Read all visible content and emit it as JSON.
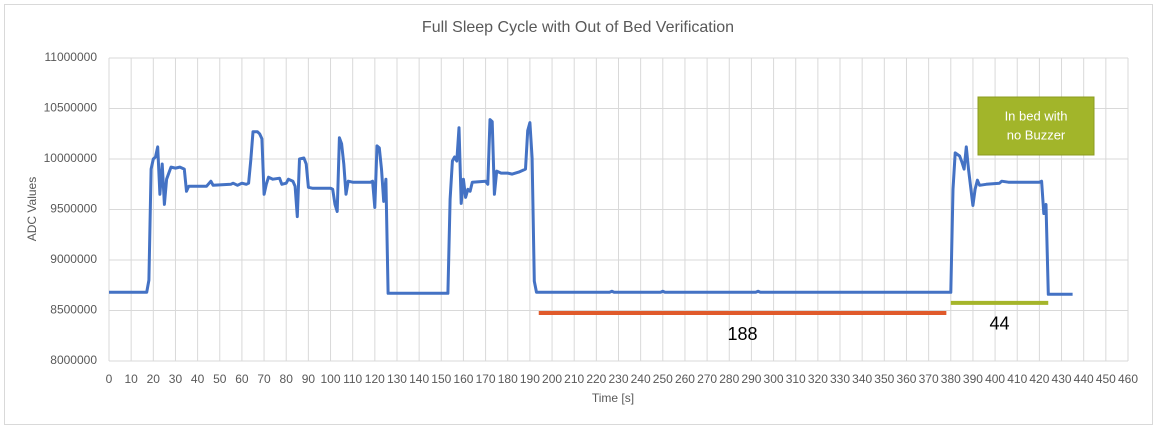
{
  "chart_data": {
    "type": "line",
    "title": "Full Sleep Cycle with Out of Bed Verification",
    "x_label": "Time [s]",
    "y_label": "ADC Values",
    "color": "#4472c4",
    "grid": true,
    "x": [
      0,
      17,
      18,
      19,
      20,
      21,
      22,
      23,
      24,
      25,
      26,
      28,
      30,
      32,
      34,
      35,
      36,
      44,
      46,
      47,
      55,
      56,
      58,
      60,
      62,
      63,
      64,
      65,
      67,
      68,
      69,
      70,
      71,
      72,
      74,
      77,
      78,
      80,
      81,
      83,
      84,
      85,
      86,
      88,
      89,
      90,
      92,
      96,
      100,
      101,
      102,
      103,
      104,
      105,
      106,
      107,
      108,
      110,
      118,
      119,
      120,
      121,
      122,
      123,
      124,
      125,
      126,
      153,
      154,
      155,
      156,
      157,
      158,
      159,
      160,
      161,
      162,
      163,
      164,
      170,
      171,
      172,
      173,
      174,
      175,
      177,
      180,
      182,
      185,
      188,
      189,
      190,
      191,
      192,
      193,
      226,
      227,
      228,
      249,
      250,
      251,
      292,
      293,
      294,
      380,
      381,
      382,
      384,
      385,
      386,
      387,
      388,
      389,
      390,
      391,
      392,
      393,
      396,
      402,
      403,
      406,
      420,
      421,
      422,
      423,
      424,
      435
    ],
    "values": [
      8680000,
      8680000,
      8800000,
      9900000,
      10000000,
      10020000,
      10120000,
      9650000,
      9950000,
      9550000,
      9800000,
      9920000,
      9910000,
      9920000,
      9900000,
      9680000,
      9730000,
      9730000,
      9780000,
      9740000,
      9750000,
      9760000,
      9740000,
      9760000,
      9750000,
      9760000,
      9990000,
      10270000,
      10270000,
      10250000,
      10200000,
      9650000,
      9750000,
      9820000,
      9800000,
      9810000,
      9750000,
      9760000,
      9800000,
      9780000,
      9730000,
      9430000,
      10000000,
      10010000,
      9950000,
      9720000,
      9710000,
      9710000,
      9710000,
      9700000,
      9550000,
      9480000,
      10210000,
      10150000,
      9950000,
      9650000,
      9780000,
      9770000,
      9770000,
      9780000,
      9520000,
      10130000,
      10110000,
      9900000,
      9580000,
      9800000,
      8670000,
      8670000,
      9600000,
      9980000,
      10020000,
      9980000,
      10310000,
      9560000,
      9800000,
      9620000,
      9700000,
      9680000,
      9770000,
      9780000,
      9750000,
      10390000,
      10370000,
      9650000,
      9880000,
      9860000,
      9860000,
      9850000,
      9870000,
      9900000,
      10280000,
      10360000,
      10010000,
      8790000,
      8680000,
      8680000,
      8690000,
      8680000,
      8680000,
      8690000,
      8680000,
      8680000,
      8690000,
      8680000,
      8680000,
      9700000,
      10060000,
      10030000,
      9970000,
      9900000,
      10120000,
      9900000,
      9720000,
      9540000,
      9700000,
      9790000,
      9740000,
      9750000,
      9760000,
      9780000,
      9770000,
      9770000,
      9780000,
      9460000,
      9550000,
      8660000,
      8660000
    ],
    "xlim": [
      0,
      460
    ],
    "xticks": [
      0,
      10,
      20,
      30,
      40,
      50,
      60,
      70,
      80,
      90,
      100,
      110,
      120,
      130,
      140,
      150,
      160,
      170,
      180,
      190,
      200,
      210,
      220,
      230,
      240,
      250,
      260,
      270,
      280,
      290,
      300,
      310,
      320,
      330,
      340,
      350,
      360,
      370,
      380,
      390,
      400,
      410,
      420,
      430,
      440,
      450,
      460
    ],
    "ylim": [
      8000000,
      11000000
    ],
    "yticks": [
      8000000,
      8500000,
      9000000,
      9500000,
      10000000,
      10500000,
      11000000
    ],
    "annotations": [
      {
        "text": "188",
        "x": [
          194,
          378
        ],
        "y": 8475000,
        "color": "#e05a2b"
      },
      {
        "text": "44",
        "x": [
          380,
          424
        ],
        "y": 8575000,
        "color": "#a5b52a"
      }
    ],
    "note": {
      "lines": [
        "In bed with",
        "no Buzzer"
      ],
      "color": "#a2b52a"
    }
  }
}
